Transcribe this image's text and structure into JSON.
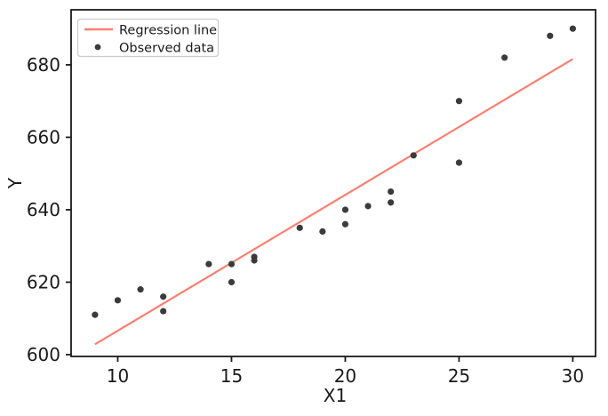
{
  "figure": {
    "background": "#ffffff"
  },
  "chart_data": {
    "type": "scatter",
    "title": "",
    "xlabel": "X1",
    "ylabel": "Y",
    "xlim": [
      7.95,
      31.0
    ],
    "ylim": [
      599.5,
      695.2
    ],
    "x_ticks": [
      "10",
      "15",
      "20",
      "25",
      "30"
    ],
    "y_ticks": [
      "600",
      "620",
      "640",
      "660",
      "680"
    ],
    "x_tick_values": [
      10,
      15,
      20,
      25,
      30
    ],
    "y_tick_values": [
      600,
      620,
      640,
      660,
      680
    ],
    "grid": false,
    "axis_color": "#1a1a1a",
    "text_color": "#1a1a1a",
    "legend": {
      "position": "upper-left",
      "border_color": "#cccccc",
      "background": "#ffffff",
      "entries": [
        {
          "label": "Regression line",
          "type": "line",
          "color": "#fa8072"
        },
        {
          "label": "Observed data",
          "type": "point",
          "color": "#3b3b3b"
        }
      ]
    },
    "series": [
      {
        "name": "Regression line",
        "type": "line",
        "color": "#fa8072",
        "slope": 3.75,
        "intercept": 569.1,
        "x_start": 9,
        "x_end": 30
      },
      {
        "name": "Observed data",
        "type": "scatter",
        "color": "#3b3b3b",
        "marker_radius": 3.6,
        "points": [
          [
            9,
            611
          ],
          [
            10,
            615
          ],
          [
            11,
            618
          ],
          [
            12,
            616
          ],
          [
            12,
            612
          ],
          [
            14,
            625
          ],
          [
            15,
            625
          ],
          [
            15,
            620
          ],
          [
            16,
            627
          ],
          [
            16,
            626
          ],
          [
            18,
            635
          ],
          [
            19,
            634
          ],
          [
            20,
            640
          ],
          [
            20,
            636
          ],
          [
            21,
            641
          ],
          [
            22,
            645
          ],
          [
            22,
            642
          ],
          [
            23,
            655
          ],
          [
            25,
            670
          ],
          [
            25,
            653
          ],
          [
            27,
            682
          ],
          [
            29,
            688
          ],
          [
            30,
            690
          ]
        ]
      }
    ]
  }
}
